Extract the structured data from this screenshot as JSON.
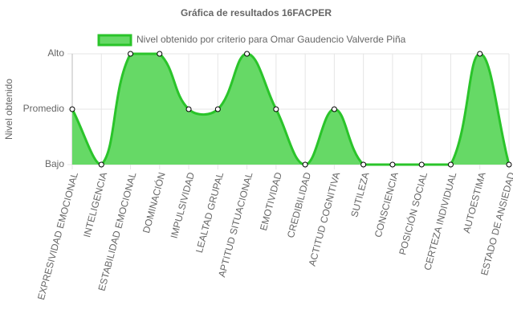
{
  "chart_data": {
    "type": "line",
    "title": "Gráfica de resultados 16FACPER",
    "y_label": "Nivel obtenido",
    "categories": [
      "EXPRESIVIDAD EMOCIONAL",
      "INTELIGENCIA",
      "ESTABILIDAD EMOCIONAL",
      "DOMINACIÓN",
      "IMPULSIVIDAD",
      "LEALTAD GRUPAL",
      "APTITUD SITUACIONAL",
      "EMOTIVIDAD",
      "CREDIBILIDAD",
      "ACTITUD COGNITIVA",
      "SUTILEZA",
      "CONSCIENCIA",
      "POSICIÓN SOCIAL",
      "CERTEZA INDIVIDUAL",
      "AUTOESTIMA",
      "ESTADO DE ANSIEDAD"
    ],
    "series": [
      {
        "name": "Nivel obtenido por criterio para Omar Gaudencio Valverde Piña",
        "color": "#2ac42a",
        "fill": "#66d966",
        "values": [
          1,
          0,
          2,
          2,
          1,
          1,
          2,
          1,
          0,
          1,
          0,
          0,
          0,
          0,
          2,
          0
        ]
      }
    ],
    "ylim": [
      0,
      2
    ],
    "yticks": [
      {
        "value": 0,
        "label": "Bajo"
      },
      {
        "value": 1,
        "label": "Promedio"
      },
      {
        "value": 2,
        "label": "Alto"
      }
    ],
    "grid": true,
    "legend": "top"
  }
}
